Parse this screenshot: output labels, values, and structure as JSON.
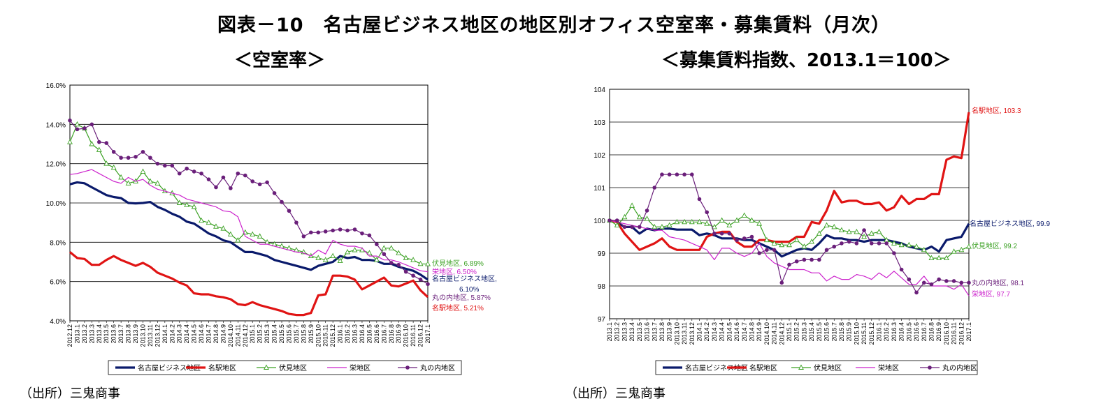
{
  "title": "図表－10　名古屋ビジネス地区の地区別オフィス空室率・募集賃料（月次）",
  "source_left": "（出所）三鬼商事",
  "source_right": "（出所）三鬼商事",
  "chart_data": [
    {
      "type": "line",
      "title": "＜空室率＞",
      "x": [
        "2012.12",
        "2013.1",
        "2013.2",
        "2013.3",
        "2013.4",
        "2013.5",
        "2013.6",
        "2013.7",
        "2013.8",
        "2013.9",
        "2013.10",
        "2013.11",
        "2013.12",
        "2014.1",
        "2014.2",
        "2014.3",
        "2014.4",
        "2014.5",
        "2014.6",
        "2014.7",
        "2014.8",
        "2014.9",
        "2014.10",
        "2014.11",
        "2014.12",
        "2015.1",
        "2015.2",
        "2015.3",
        "2015.4",
        "2015.5",
        "2015.6",
        "2015.7",
        "2015.8",
        "2015.9",
        "2015.10",
        "2015.11",
        "2015.12",
        "2016.1",
        "2016.2",
        "2016.3",
        "2016.4",
        "2016.5",
        "2016.6",
        "2016.7",
        "2016.8",
        "2016.9",
        "2016.10",
        "2016.11",
        "2016.12",
        "2017.1"
      ],
      "x_tick_labels": [
        "2012.12",
        "2013.1",
        "2013.2",
        "2013.3",
        "2013.4",
        "2013.5",
        "2013.6",
        "2013.7",
        "2013.8",
        "2013.9",
        "2013.10",
        "2013.11",
        "2013.12",
        "2014.1",
        "2014.2",
        "2014.3",
        "2014.4",
        "2014.5",
        "2014.6",
        "2014.7",
        "2014.8",
        "2014.9",
        "2014.10",
        "2014.11",
        "2014.12",
        "2015.1",
        "2015.2",
        "2015.3",
        "2015.4",
        "2015.5",
        "2015.6",
        "2015.7",
        "2015.8",
        "2015.9",
        "2015.10",
        "2015.11",
        "2015.12",
        "2016.1",
        "2016.2",
        "2016.3",
        "2016.4",
        "2016.5",
        "2016.6",
        "2016.7",
        "2016.8",
        "2016.9",
        "2016.10",
        "2016.11",
        "2016.12",
        "2017.1"
      ],
      "y_ticks": [
        "4.0%",
        "6.0%",
        "8.0%",
        "10.0%",
        "12.0%",
        "14.0%",
        "16.0%"
      ],
      "ylim": [
        4,
        16
      ],
      "grid": true,
      "legend": "bottom",
      "series": [
        {
          "name": "名古屋ビジネス地区",
          "color": "#0a1a6b",
          "style": "thick",
          "values": [
            10.95,
            11.05,
            11.0,
            10.8,
            10.6,
            10.4,
            10.3,
            10.25,
            10.0,
            9.98,
            10.0,
            10.05,
            9.8,
            9.65,
            9.45,
            9.3,
            9.05,
            8.95,
            8.7,
            8.45,
            8.3,
            8.1,
            8.0,
            7.75,
            7.5,
            7.5,
            7.4,
            7.3,
            7.1,
            7.0,
            6.9,
            6.8,
            6.7,
            6.6,
            6.8,
            6.9,
            7.0,
            7.3,
            7.2,
            7.25,
            7.1,
            7.1,
            7.05,
            6.9,
            6.9,
            6.75,
            6.65,
            6.55,
            6.35,
            6.1
          ]
        },
        {
          "name": "名駅地区",
          "color": "#e01414",
          "style": "thick",
          "values": [
            7.5,
            7.2,
            7.15,
            6.85,
            6.85,
            7.1,
            7.3,
            7.1,
            6.95,
            6.8,
            6.95,
            6.75,
            6.45,
            6.3,
            6.15,
            5.95,
            5.8,
            5.4,
            5.35,
            5.35,
            5.25,
            5.2,
            5.1,
            4.85,
            4.8,
            4.95,
            4.8,
            4.7,
            4.6,
            4.5,
            4.35,
            4.3,
            4.3,
            4.4,
            5.3,
            5.35,
            6.3,
            6.3,
            6.25,
            6.1,
            5.6,
            5.8,
            6.0,
            6.2,
            5.8,
            5.75,
            5.9,
            6.05,
            5.55,
            5.21
          ]
        },
        {
          "name": "伏見地区",
          "color": "#3aa022",
          "style": "triangle",
          "values": [
            13.1,
            14.0,
            13.8,
            13.0,
            12.7,
            12.0,
            11.8,
            11.3,
            11.0,
            11.1,
            11.6,
            11.1,
            11.0,
            10.6,
            10.5,
            10.0,
            9.9,
            9.8,
            9.1,
            9.0,
            8.8,
            8.7,
            8.4,
            8.1,
            8.5,
            8.4,
            8.3,
            8.0,
            7.9,
            7.8,
            7.7,
            7.6,
            7.5,
            7.3,
            7.2,
            7.1,
            7.3,
            7.05,
            7.5,
            7.6,
            7.6,
            7.45,
            7.1,
            7.7,
            7.7,
            7.45,
            7.2,
            7.1,
            6.9,
            6.89
          ]
        },
        {
          "name": "栄地区",
          "color": "#cc22cc",
          "style": "thin",
          "values": [
            11.45,
            11.5,
            11.6,
            11.7,
            11.5,
            11.3,
            11.1,
            11.0,
            11.3,
            11.1,
            11.2,
            10.9,
            10.7,
            10.6,
            10.5,
            10.4,
            10.2,
            10.1,
            10.0,
            9.9,
            9.8,
            9.6,
            9.55,
            9.3,
            8.3,
            8.1,
            7.9,
            7.9,
            7.8,
            7.7,
            7.6,
            7.5,
            7.45,
            7.3,
            7.6,
            7.4,
            8.1,
            7.9,
            7.8,
            7.8,
            7.7,
            7.3,
            7.3,
            7.1,
            7.1,
            7.0,
            6.85,
            6.7,
            6.55,
            6.5
          ]
        },
        {
          "name": "丸の内地区",
          "color": "#6a1f7a",
          "style": "dot",
          "values": [
            14.2,
            13.75,
            13.8,
            14.0,
            13.1,
            13.05,
            12.6,
            12.3,
            12.3,
            12.35,
            12.6,
            12.3,
            12.0,
            11.9,
            11.9,
            11.5,
            11.75,
            11.6,
            11.5,
            11.2,
            10.8,
            11.3,
            10.75,
            11.5,
            11.4,
            11.1,
            10.95,
            11.05,
            10.5,
            10.05,
            9.6,
            9.0,
            8.3,
            8.5,
            8.5,
            8.55,
            8.6,
            8.65,
            8.6,
            8.65,
            8.45,
            8.35,
            7.9,
            7.4,
            6.95,
            6.85,
            6.5,
            6.3,
            6.1,
            5.87
          ]
        }
      ],
      "annotations": [
        {
          "text": "伏見地区, 6.89%",
          "color": "#3aa022"
        },
        {
          "text": "栄地区, 6.50%",
          "color": "#cc22cc"
        },
        {
          "text": "名古屋ビジネス地区,",
          "color": "#0a1a6b"
        },
        {
          "text": "6.10%",
          "color": "#0a1a6b"
        },
        {
          "text": "丸の内地区, 5.87%",
          "color": "#6a1f7a"
        },
        {
          "text": "名駅地区, 5.21%",
          "color": "#e01414"
        }
      ]
    },
    {
      "type": "line",
      "title": "＜募集賃料指数、2013.1＝100＞",
      "x": [
        "2013.1",
        "2013.2",
        "2013.3",
        "2013.4",
        "2013.5",
        "2013.6",
        "2013.7",
        "2013.8",
        "2013.9",
        "2013.10",
        "2013.11",
        "2013.12",
        "2014.1",
        "2014.2",
        "2014.3",
        "2014.4",
        "2014.5",
        "2014.6",
        "2014.7",
        "2014.8",
        "2014.9",
        "2014.10",
        "2014.11",
        "2014.12",
        "2015.1",
        "2015.2",
        "2015.3",
        "2015.4",
        "2015.5",
        "2015.6",
        "2015.7",
        "2015.8",
        "2015.9",
        "2015.10",
        "2015.11",
        "2015.12",
        "2016.1",
        "2016.2",
        "2016.3",
        "2016.4",
        "2016.5",
        "2016.6",
        "2016.7",
        "2016.8",
        "2016.9",
        "2016.10",
        "2016.11",
        "2016.12",
        "2017.1"
      ],
      "x_tick_labels": [
        "2013.1",
        "2013.2",
        "2013.3",
        "2013.4",
        "2013.5",
        "2013.6",
        "2013.7",
        "2013.8",
        "2013.9",
        "2013.10",
        "2013.11",
        "2013.12",
        "2014.1",
        "2014.2",
        "2014.3",
        "2014.4",
        "2014.5",
        "2014.6",
        "2014.7",
        "2014.8",
        "2014.9",
        "2014.10",
        "2014.11",
        "2014.12",
        "2015.1",
        "2015.2",
        "2015.3",
        "2015.4",
        "2015.5",
        "2015.6",
        "2015.7",
        "2015.8",
        "2015.9",
        "2015.10",
        "2015.11",
        "2015.12",
        "2016.1",
        "2016.2",
        "2016.3",
        "2016.4",
        "2016.5",
        "2016.6",
        "2016.7",
        "2016.8",
        "2016.9",
        "2016.10",
        "2016.11",
        "2016.12",
        "2017.1"
      ],
      "y_ticks": [
        "97",
        "98",
        "99",
        "100",
        "101",
        "102",
        "103",
        "104"
      ],
      "ylim": [
        97,
        104
      ],
      "grid": true,
      "legend": "bottom",
      "series": [
        {
          "name": "名古屋ビジネス地区",
          "color": "#0a1a6b",
          "style": "thick",
          "values": [
            100.0,
            99.95,
            99.8,
            99.8,
            99.6,
            99.75,
            99.7,
            99.75,
            99.75,
            99.72,
            99.72,
            99.72,
            99.55,
            99.6,
            99.55,
            99.45,
            99.45,
            99.45,
            99.4,
            99.4,
            99.3,
            99.2,
            99.1,
            98.9,
            99.0,
            99.1,
            99.15,
            99.1,
            99.3,
            99.55,
            99.45,
            99.45,
            99.4,
            99.4,
            99.35,
            99.4,
            99.4,
            99.4,
            99.35,
            99.3,
            99.2,
            99.15,
            99.1,
            99.2,
            99.05,
            99.4,
            99.45,
            99.5,
            99.9
          ]
        },
        {
          "name": "名駅地区",
          "color": "#e01414",
          "style": "thick",
          "values": [
            100.0,
            99.95,
            99.6,
            99.35,
            99.1,
            99.2,
            99.3,
            99.45,
            99.2,
            99.1,
            99.1,
            99.1,
            99.1,
            99.5,
            99.6,
            99.65,
            99.65,
            99.35,
            99.2,
            99.2,
            99.4,
            99.4,
            99.35,
            99.35,
            99.35,
            99.5,
            99.5,
            99.95,
            99.9,
            100.3,
            100.9,
            100.55,
            100.6,
            100.6,
            100.5,
            100.5,
            100.55,
            100.3,
            100.4,
            100.75,
            100.5,
            100.65,
            100.65,
            100.8,
            100.8,
            101.85,
            101.95,
            101.9,
            103.3
          ]
        },
        {
          "name": "伏見地区",
          "color": "#3aa022",
          "style": "triangle",
          "values": [
            100.0,
            99.85,
            100.1,
            100.45,
            100.1,
            100.05,
            99.8,
            99.8,
            99.85,
            99.95,
            99.95,
            99.95,
            99.95,
            99.9,
            99.8,
            100.0,
            99.85,
            100.0,
            100.15,
            100.0,
            99.9,
            99.4,
            99.3,
            99.25,
            99.25,
            99.4,
            99.2,
            99.35,
            99.6,
            99.85,
            99.8,
            99.7,
            99.65,
            99.65,
            99.5,
            99.6,
            99.65,
            99.4,
            99.3,
            99.25,
            99.25,
            99.2,
            99.1,
            98.85,
            98.85,
            98.85,
            99.05,
            99.1,
            99.2
          ]
        },
        {
          "name": "栄地区",
          "color": "#cc22cc",
          "style": "thin",
          "values": [
            100.0,
            99.95,
            99.9,
            99.85,
            99.8,
            99.75,
            99.7,
            99.7,
            99.5,
            99.45,
            99.4,
            99.3,
            99.2,
            99.1,
            98.8,
            99.15,
            99.15,
            99.0,
            98.9,
            99.0,
            99.3,
            98.9,
            98.7,
            98.6,
            98.5,
            98.5,
            98.5,
            98.4,
            98.4,
            98.15,
            98.3,
            98.2,
            98.2,
            98.35,
            98.3,
            98.2,
            98.4,
            98.25,
            98.45,
            98.25,
            98.05,
            98.05,
            98.3,
            98.0,
            98.0,
            98.0,
            97.9,
            98.05,
            97.7
          ]
        },
        {
          "name": "丸の内地区",
          "color": "#6a1f7a",
          "style": "dot",
          "values": [
            100.0,
            100.0,
            99.8,
            99.8,
            99.8,
            100.3,
            101.0,
            101.4,
            101.4,
            101.4,
            101.4,
            101.4,
            100.65,
            100.25,
            99.6,
            99.6,
            99.6,
            99.4,
            99.45,
            99.5,
            99.0,
            99.1,
            99.1,
            98.1,
            98.65,
            98.75,
            98.8,
            98.8,
            98.8,
            99.1,
            99.2,
            99.3,
            99.35,
            99.3,
            99.7,
            99.3,
            99.3,
            99.3,
            99.0,
            98.5,
            98.2,
            97.8,
            98.1,
            98.05,
            98.2,
            98.15,
            98.15,
            98.1,
            98.1
          ]
        }
      ],
      "annotations": [
        {
          "text": "名駅地区, 103.3",
          "color": "#e01414"
        },
        {
          "text": "名古屋ビジネス地区, 99.9",
          "color": "#0a1a6b"
        },
        {
          "text": "伏見地区, 99.2",
          "color": "#3aa022"
        },
        {
          "text": "丸の内地区, 98.1",
          "color": "#6a1f7a"
        },
        {
          "text": "栄地区, 97.7",
          "color": "#cc22cc"
        }
      ]
    }
  ]
}
